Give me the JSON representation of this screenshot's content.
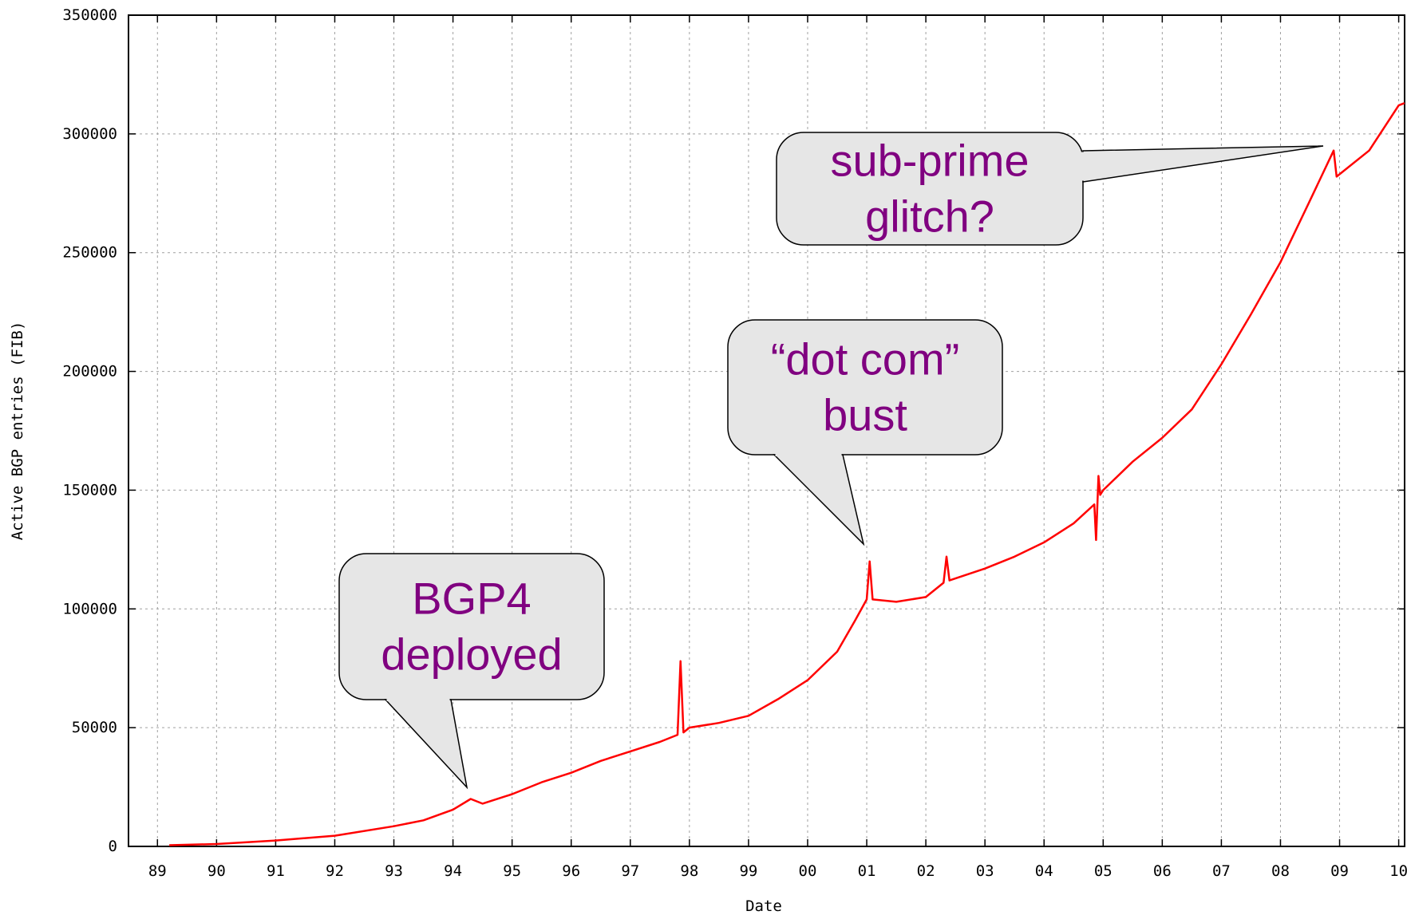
{
  "chart_data": {
    "type": "line",
    "x_label": "Date",
    "y_label": "Active BGP entries (FIB)",
    "xlim": [
      1988.51,
      2010.1
    ],
    "xticks": [
      {
        "value": 1989,
        "label": "89"
      },
      {
        "value": 1990,
        "label": "90"
      },
      {
        "value": 1991,
        "label": "91"
      },
      {
        "value": 1992,
        "label": "92"
      },
      {
        "value": 1993,
        "label": "93"
      },
      {
        "value": 1994,
        "label": "94"
      },
      {
        "value": 1995,
        "label": "95"
      },
      {
        "value": 1996,
        "label": "96"
      },
      {
        "value": 1997,
        "label": "97"
      },
      {
        "value": 1998,
        "label": "98"
      },
      {
        "value": 1999,
        "label": "99"
      },
      {
        "value": 2000,
        "label": "00"
      },
      {
        "value": 2001,
        "label": "01"
      },
      {
        "value": 2002,
        "label": "02"
      },
      {
        "value": 2003,
        "label": "03"
      },
      {
        "value": 2004,
        "label": "04"
      },
      {
        "value": 2005,
        "label": "05"
      },
      {
        "value": 2006,
        "label": "06"
      },
      {
        "value": 2007,
        "label": "07"
      },
      {
        "value": 2008,
        "label": "08"
      },
      {
        "value": 2009,
        "label": "09"
      },
      {
        "value": 2010,
        "label": "10"
      }
    ],
    "ylim": [
      0,
      350000
    ],
    "yticks": [
      0,
      50000,
      100000,
      150000,
      200000,
      250000,
      300000,
      350000
    ],
    "grid": true,
    "series": [
      {
        "color": "#ff0000",
        "x": [
          1989.2,
          1990,
          1991,
          1992,
          1993,
          1993.5,
          1994,
          1994.3,
          1994.5,
          1995,
          1995.5,
          1996,
          1996.5,
          1997,
          1997.5,
          1997.8,
          1997.85,
          1997.9,
          1998,
          1998.5,
          1999,
          1999.5,
          2000,
          2000.5,
          2000.8,
          2001,
          2001.05,
          2001.1,
          2001.5,
          2002,
          2002.3,
          2002.35,
          2002.4,
          2003,
          2003.5,
          2004,
          2004.5,
          2004.85,
          2004.88,
          2004.92,
          2004.95,
          2005,
          2005.5,
          2006,
          2006.5,
          2007,
          2007.5,
          2008,
          2008.5,
          2008.9,
          2008.95,
          2009.5,
          2010,
          2010.1
        ],
        "values": [
          500,
          1000,
          2500,
          4500,
          8500,
          11000,
          15500,
          20000,
          18000,
          22000,
          27000,
          31000,
          36000,
          40000,
          44000,
          47000,
          78000,
          48000,
          50000,
          52000,
          55000,
          62000,
          70000,
          82000,
          95000,
          104000,
          120000,
          104000,
          103000,
          105000,
          111000,
          122000,
          112000,
          117000,
          122000,
          128000,
          136000,
          144000,
          129000,
          156000,
          148000,
          150000,
          162000,
          172000,
          184000,
          203000,
          224000,
          246000,
          272000,
          293000,
          282000,
          293000,
          312000,
          313000
        ]
      }
    ],
    "annotations": [
      {
        "lines": [
          "BGP4",
          "deployed"
        ]
      },
      {
        "lines": [
          "“dot com”",
          "bust"
        ]
      },
      {
        "lines": [
          "sub-prime",
          "glitch?"
        ]
      }
    ]
  }
}
